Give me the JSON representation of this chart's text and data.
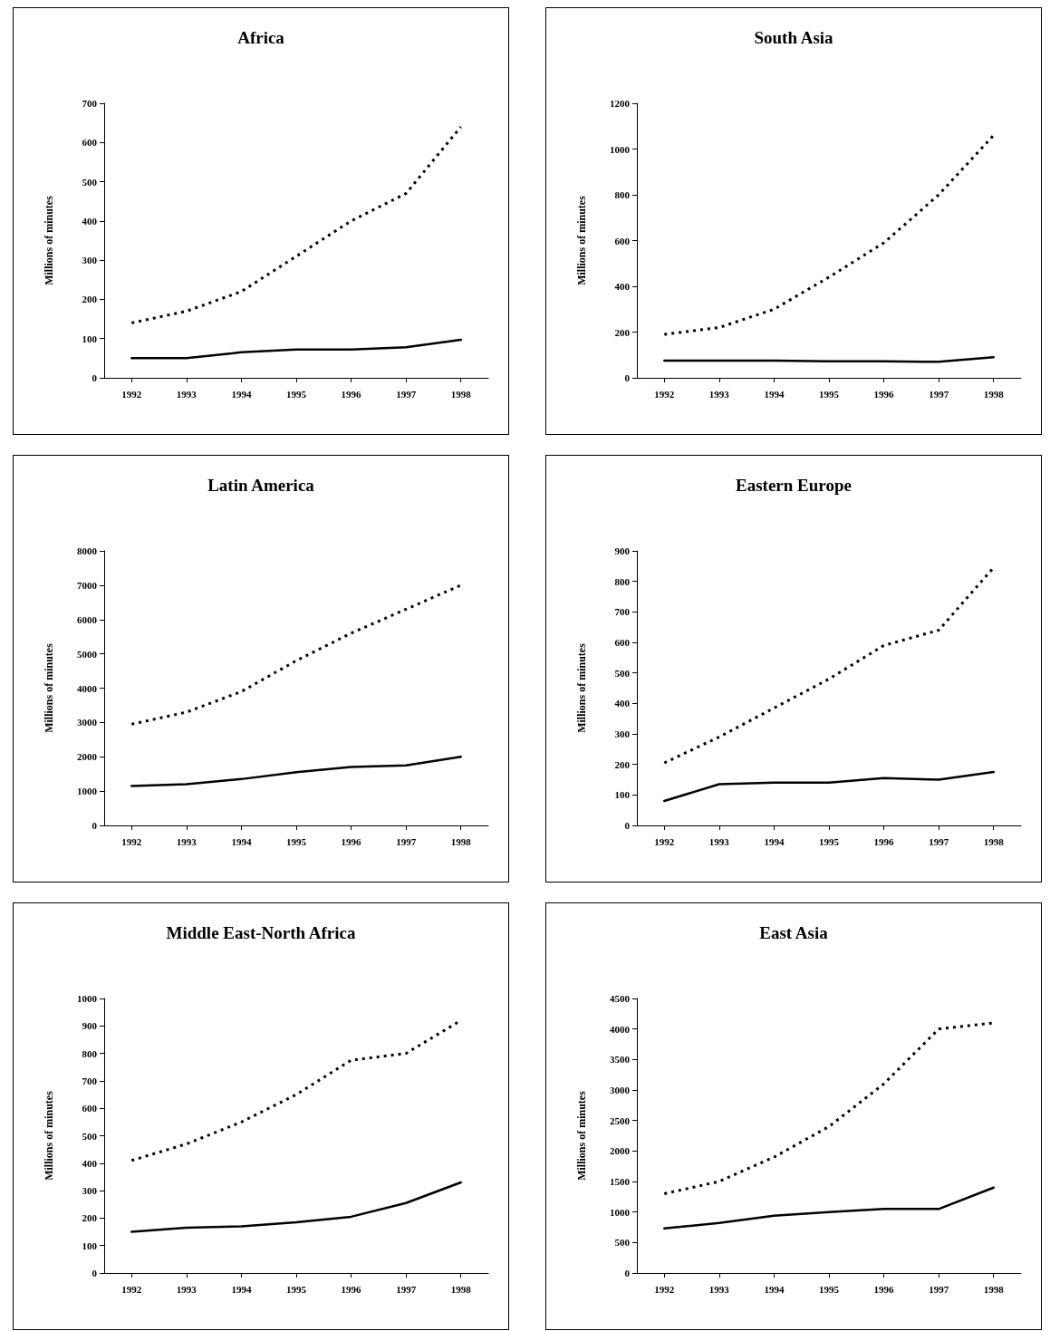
{
  "chart_data": [
    {
      "type": "line",
      "title": "Africa",
      "ylabel": "Millions of minutes",
      "categories": [
        "1992",
        "1993",
        "1994",
        "1995",
        "1996",
        "1997",
        "1998"
      ],
      "ylim": [
        0,
        700
      ],
      "yticks": [
        0,
        100,
        200,
        300,
        400,
        500,
        600,
        700
      ],
      "grid": false,
      "marker": "none",
      "series": [
        {
          "color": "#000000",
          "line_style": "dotted",
          "values": [
            140,
            170,
            220,
            310,
            400,
            470,
            640
          ]
        },
        {
          "color": "#000000",
          "line_style": "solid",
          "values": [
            50,
            50,
            65,
            72,
            72,
            78,
            97
          ]
        }
      ]
    },
    {
      "type": "line",
      "title": "South Asia",
      "ylabel": "Millions of minutes",
      "categories": [
        "1992",
        "1993",
        "1994",
        "1995",
        "1996",
        "1997",
        "1998"
      ],
      "ylim": [
        0,
        1200
      ],
      "yticks": [
        0,
        200,
        400,
        600,
        800,
        1000,
        1200
      ],
      "grid": false,
      "marker": "none",
      "series": [
        {
          "color": "#000000",
          "line_style": "dotted",
          "values": [
            190,
            220,
            300,
            440,
            590,
            800,
            1060
          ]
        },
        {
          "color": "#000000",
          "line_style": "solid",
          "values": [
            75,
            75,
            75,
            72,
            72,
            70,
            90
          ]
        }
      ]
    },
    {
      "type": "line",
      "title": "Latin America",
      "ylabel": "Millions of minutes",
      "categories": [
        "1992",
        "1993",
        "1994",
        "1995",
        "1996",
        "1997",
        "1998"
      ],
      "ylim": [
        0,
        8000
      ],
      "yticks": [
        0,
        1000,
        2000,
        3000,
        4000,
        5000,
        6000,
        7000,
        8000
      ],
      "grid": false,
      "marker": "none",
      "series": [
        {
          "color": "#000000",
          "line_style": "dotted",
          "values": [
            2950,
            3300,
            3900,
            4800,
            5600,
            6300,
            7000
          ]
        },
        {
          "color": "#000000",
          "line_style": "solid",
          "values": [
            1150,
            1200,
            1350,
            1550,
            1700,
            1750,
            2000
          ]
        }
      ]
    },
    {
      "type": "line",
      "title": "Eastern Europe",
      "ylabel": "Millions of minutes",
      "categories": [
        "1992",
        "1993",
        "1994",
        "1995",
        "1996",
        "1997",
        "1998"
      ],
      "ylim": [
        0,
        900
      ],
      "yticks": [
        0,
        100,
        200,
        300,
        400,
        500,
        600,
        700,
        800,
        900
      ],
      "grid": false,
      "marker": "none",
      "series": [
        {
          "color": "#000000",
          "line_style": "dotted",
          "values": [
            205,
            290,
            385,
            480,
            590,
            640,
            845
          ]
        },
        {
          "color": "#000000",
          "line_style": "solid",
          "values": [
            80,
            135,
            140,
            140,
            155,
            150,
            175
          ]
        }
      ]
    },
    {
      "type": "line",
      "title": "Middle East-North Africa",
      "ylabel": "Millions of minutes",
      "categories": [
        "1992",
        "1993",
        "1994",
        "1995",
        "1996",
        "1997",
        "1998"
      ],
      "ylim": [
        0,
        1000
      ],
      "yticks": [
        0,
        100,
        200,
        300,
        400,
        500,
        600,
        700,
        800,
        900,
        1000
      ],
      "grid": false,
      "marker": "none",
      "series": [
        {
          "color": "#000000",
          "line_style": "dotted",
          "values": [
            410,
            470,
            550,
            650,
            775,
            800,
            920
          ]
        },
        {
          "color": "#000000",
          "line_style": "solid",
          "values": [
            150,
            165,
            170,
            185,
            205,
            255,
            330
          ]
        }
      ]
    },
    {
      "type": "line",
      "title": "East Asia",
      "ylabel": "Millions of minutes",
      "categories": [
        "1992",
        "1993",
        "1994",
        "1995",
        "1996",
        "1997",
        "1998"
      ],
      "ylim": [
        0,
        4500
      ],
      "yticks": [
        0,
        500,
        1000,
        1500,
        2000,
        2500,
        3000,
        3500,
        4000,
        4500
      ],
      "grid": false,
      "marker": "none",
      "series": [
        {
          "color": "#000000",
          "line_style": "dotted",
          "values": [
            1300,
            1500,
            1900,
            2400,
            3100,
            4000,
            4100
          ]
        },
        {
          "color": "#000000",
          "line_style": "solid",
          "values": [
            730,
            820,
            940,
            1000,
            1050,
            1050,
            1400
          ]
        }
      ]
    }
  ]
}
